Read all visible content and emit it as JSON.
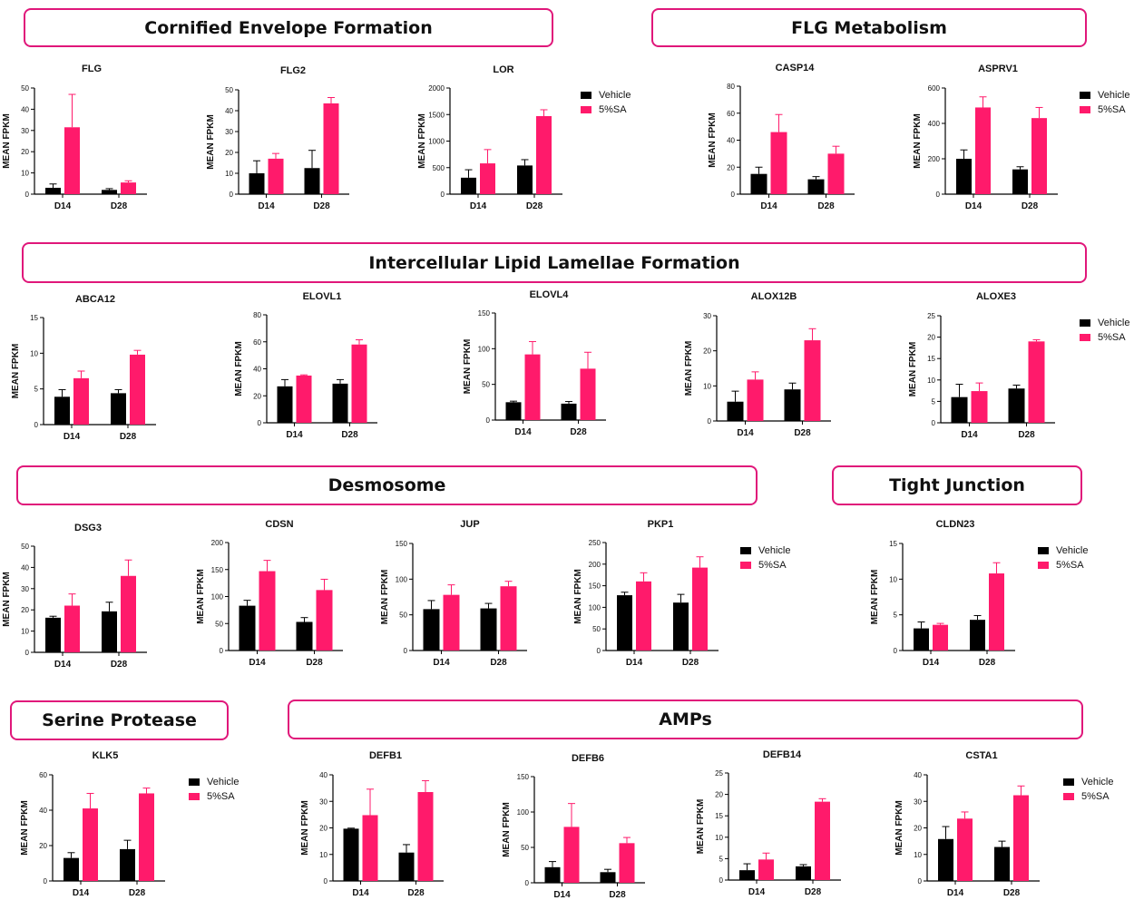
{
  "colors": {
    "vehicle": "#000000",
    "sa": "#ff1a6b",
    "section_border": "#e0177a"
  },
  "sections": {
    "cornified": "Cornified Envelope Formation",
    "flg_metabolism": "FLG Metabolism",
    "lipid": "Intercellular Lipid Lamellae Formation",
    "desmosome": "Desmosome",
    "tight_junction": "Tight Junction",
    "serine_protease": "Serine Protease",
    "amps": "AMPs"
  },
  "legend": {
    "vehicle": "Vehicle",
    "sa": "5%SA"
  },
  "chart_data": [
    {
      "type": "bar",
      "title": "FLG",
      "ylabel": "MEAN FPKM",
      "categories": [
        "D14",
        "D28"
      ],
      "ylim": [
        0,
        50
      ],
      "yticks": [
        0,
        10,
        20,
        30,
        40,
        50
      ],
      "series": [
        {
          "name": "Vehicle",
          "values": [
            3,
            2
          ],
          "errors": [
            1.8,
            0.6
          ]
        },
        {
          "name": "5%SA",
          "values": [
            31.5,
            5.5
          ],
          "errors": [
            15.5,
            0.8
          ]
        }
      ]
    },
    {
      "type": "bar",
      "title": "FLG2",
      "ylabel": "MEAN FPKM",
      "categories": [
        "D14",
        "D28"
      ],
      "ylim": [
        0,
        50
      ],
      "yticks": [
        0,
        10,
        20,
        30,
        40,
        50
      ],
      "series": [
        {
          "name": "Vehicle",
          "values": [
            10,
            12.5
          ],
          "errors": [
            6,
            8.5
          ]
        },
        {
          "name": "5%SA",
          "values": [
            17,
            43.5
          ],
          "errors": [
            2.5,
            2.8
          ]
        }
      ]
    },
    {
      "type": "bar",
      "title": "LOR",
      "ylabel": "MEAN FPKM",
      "categories": [
        "D14",
        "D28"
      ],
      "ylim": [
        0,
        2000
      ],
      "yticks": [
        0,
        500,
        1000,
        1500,
        2000
      ],
      "series": [
        {
          "name": "Vehicle",
          "values": [
            310,
            540
          ],
          "errors": [
            150,
            110
          ]
        },
        {
          "name": "5%SA",
          "values": [
            580,
            1470
          ],
          "errors": [
            260,
            120
          ]
        }
      ]
    },
    {
      "type": "bar",
      "title": "CASP14",
      "ylabel": "MEAN FPKM",
      "categories": [
        "D14",
        "D28"
      ],
      "ylim": [
        0,
        80
      ],
      "yticks": [
        0,
        20,
        40,
        60,
        80
      ],
      "series": [
        {
          "name": "Vehicle",
          "values": [
            15,
            11
          ],
          "errors": [
            5,
            2
          ]
        },
        {
          "name": "5%SA",
          "values": [
            46,
            30
          ],
          "errors": [
            13,
            5.5
          ]
        }
      ]
    },
    {
      "type": "bar",
      "title": "ASPRV1",
      "ylabel": "MEAN FPKM",
      "categories": [
        "D14",
        "D28"
      ],
      "ylim": [
        0,
        600
      ],
      "yticks": [
        0,
        200,
        400,
        600
      ],
      "series": [
        {
          "name": "Vehicle",
          "values": [
            200,
            140
          ],
          "errors": [
            50,
            15
          ]
        },
        {
          "name": "5%SA",
          "values": [
            490,
            430
          ],
          "errors": [
            60,
            60
          ]
        }
      ]
    },
    {
      "type": "bar",
      "title": "ABCA12",
      "ylabel": "MEAN FPKM",
      "categories": [
        "D14",
        "D28"
      ],
      "ylim": [
        0,
        15
      ],
      "yticks": [
        0,
        5,
        10,
        15
      ],
      "series": [
        {
          "name": "Vehicle",
          "values": [
            3.9,
            4.4
          ],
          "errors": [
            1,
            0.5
          ]
        },
        {
          "name": "5%SA",
          "values": [
            6.5,
            9.8
          ],
          "errors": [
            1,
            0.6
          ]
        }
      ]
    },
    {
      "type": "bar",
      "title": "ELOVL1",
      "ylabel": "MEAN FPKM",
      "categories": [
        "D14",
        "D28"
      ],
      "ylim": [
        0,
        80
      ],
      "yticks": [
        0,
        20,
        40,
        60,
        80
      ],
      "series": [
        {
          "name": "Vehicle",
          "values": [
            27,
            29
          ],
          "errors": [
            5,
            3
          ]
        },
        {
          "name": "5%SA",
          "values": [
            35,
            58
          ],
          "errors": [
            0.5,
            3.5
          ]
        }
      ]
    },
    {
      "type": "bar",
      "title": "ELOVL4",
      "ylabel": "MEAN FPKM",
      "categories": [
        "D14",
        "D28"
      ],
      "ylim": [
        0,
        150
      ],
      "yticks": [
        0,
        50,
        100,
        150
      ],
      "series": [
        {
          "name": "Vehicle",
          "values": [
            25,
            23
          ],
          "errors": [
            1.5,
            3
          ]
        },
        {
          "name": "5%SA",
          "values": [
            92,
            72
          ],
          "errors": [
            18,
            23
          ]
        }
      ]
    },
    {
      "type": "bar",
      "title": "ALOX12B",
      "ylabel": "MEAN FPKM",
      "categories": [
        "D14",
        "D28"
      ],
      "ylim": [
        0,
        30
      ],
      "yticks": [
        0,
        10,
        20,
        30
      ],
      "series": [
        {
          "name": "Vehicle",
          "values": [
            5.5,
            9
          ],
          "errors": [
            3,
            1.8
          ]
        },
        {
          "name": "5%SA",
          "values": [
            11.8,
            23
          ],
          "errors": [
            2.2,
            3.3
          ]
        }
      ]
    },
    {
      "type": "bar",
      "title": "ALOXE3",
      "ylabel": "MEAN FPKM",
      "categories": [
        "D14",
        "D28"
      ],
      "ylim": [
        0,
        25
      ],
      "yticks": [
        0,
        5,
        10,
        15,
        20,
        25
      ],
      "series": [
        {
          "name": "Vehicle",
          "values": [
            6,
            8
          ],
          "errors": [
            3,
            0.8
          ]
        },
        {
          "name": "5%SA",
          "values": [
            7.4,
            19
          ],
          "errors": [
            1.9,
            0.4
          ]
        }
      ]
    },
    {
      "type": "bar",
      "title": "DSG3",
      "ylabel": "MEAN FPKM",
      "categories": [
        "D14",
        "D28"
      ],
      "ylim": [
        0,
        50
      ],
      "yticks": [
        0,
        10,
        20,
        30,
        40,
        50
      ],
      "series": [
        {
          "name": "Vehicle",
          "values": [
            16.3,
            19.3
          ],
          "errors": [
            0.7,
            4.3
          ]
        },
        {
          "name": "5%SA",
          "values": [
            22,
            36
          ],
          "errors": [
            5.5,
            7.5
          ]
        }
      ]
    },
    {
      "type": "bar",
      "title": "CDSN",
      "ylabel": "MEAN FPKM",
      "categories": [
        "D14",
        "D28"
      ],
      "ylim": [
        0,
        200
      ],
      "yticks": [
        0,
        50,
        100,
        150,
        200
      ],
      "series": [
        {
          "name": "Vehicle",
          "values": [
            83,
            53
          ],
          "errors": [
            10,
            8
          ]
        },
        {
          "name": "5%SA",
          "values": [
            147,
            112
          ],
          "errors": [
            20,
            20
          ]
        }
      ]
    },
    {
      "type": "bar",
      "title": "JUP",
      "ylabel": "MEAN FPKM",
      "categories": [
        "D14",
        "D28"
      ],
      "ylim": [
        0,
        150
      ],
      "yticks": [
        0,
        50,
        100,
        150
      ],
      "series": [
        {
          "name": "Vehicle",
          "values": [
            58,
            59
          ],
          "errors": [
            12,
            7
          ]
        },
        {
          "name": "5%SA",
          "values": [
            78,
            90
          ],
          "errors": [
            14,
            7
          ]
        }
      ]
    },
    {
      "type": "bar",
      "title": "PKP1",
      "ylabel": "MEAN FPKM",
      "categories": [
        "D14",
        "D28"
      ],
      "ylim": [
        0,
        250
      ],
      "yticks": [
        0,
        50,
        100,
        150,
        200,
        250
      ],
      "series": [
        {
          "name": "Vehicle",
          "values": [
            128,
            111
          ],
          "errors": [
            7,
            19
          ]
        },
        {
          "name": "5%SA",
          "values": [
            160,
            192
          ],
          "errors": [
            20,
            25
          ]
        }
      ]
    },
    {
      "type": "bar",
      "title": "CLDN23",
      "ylabel": "MEAN FPKM",
      "categories": [
        "D14",
        "D28"
      ],
      "ylim": [
        0,
        15
      ],
      "yticks": [
        0,
        5,
        10,
        15
      ],
      "series": [
        {
          "name": "Vehicle",
          "values": [
            3.1,
            4.3
          ],
          "errors": [
            0.9,
            0.6
          ]
        },
        {
          "name": "5%SA",
          "values": [
            3.6,
            10.8
          ],
          "errors": [
            0.2,
            1.5
          ]
        }
      ]
    },
    {
      "type": "bar",
      "title": "KLK5",
      "ylabel": "MEAN FPKM",
      "categories": [
        "D14",
        "D28"
      ],
      "ylim": [
        0,
        60
      ],
      "yticks": [
        0,
        20,
        40,
        60
      ],
      "series": [
        {
          "name": "Vehicle",
          "values": [
            13,
            18
          ],
          "errors": [
            3,
            5
          ]
        },
        {
          "name": "5%SA",
          "values": [
            41,
            49.5
          ],
          "errors": [
            8.5,
            3
          ]
        }
      ]
    },
    {
      "type": "bar",
      "title": "DEFB1",
      "ylabel": "MEAN FPKM",
      "categories": [
        "D14",
        "D28"
      ],
      "ylim": [
        0,
        40
      ],
      "yticks": [
        0,
        10,
        20,
        30,
        40
      ],
      "series": [
        {
          "name": "Vehicle",
          "values": [
            19.7,
            10.7
          ],
          "errors": [
            0.2,
            3
          ]
        },
        {
          "name": "5%SA",
          "values": [
            24.8,
            33.5
          ],
          "errors": [
            9.8,
            4.3
          ]
        }
      ]
    },
    {
      "type": "bar",
      "title": "DEFB6",
      "ylabel": "MEAN FPKM",
      "categories": [
        "D14",
        "D28"
      ],
      "ylim": [
        0,
        150
      ],
      "yticks": [
        0,
        50,
        100,
        150
      ],
      "series": [
        {
          "name": "Vehicle",
          "values": [
            22,
            15
          ],
          "errors": [
            8,
            4
          ]
        },
        {
          "name": "5%SA",
          "values": [
            79,
            56
          ],
          "errors": [
            33,
            8
          ]
        }
      ]
    },
    {
      "type": "bar",
      "title": "DEFB14",
      "ylabel": "MEAN FPKM",
      "categories": [
        "D14",
        "D28"
      ],
      "ylim": [
        0,
        25
      ],
      "yticks": [
        0,
        5,
        10,
        15,
        20,
        25
      ],
      "series": [
        {
          "name": "Vehicle",
          "values": [
            2.3,
            3.2
          ],
          "errors": [
            1.5,
            0.4
          ]
        },
        {
          "name": "5%SA",
          "values": [
            4.8,
            18.3
          ],
          "errors": [
            1.5,
            0.7
          ]
        }
      ]
    },
    {
      "type": "bar",
      "title": "CSTA1",
      "ylabel": "MEAN FPKM",
      "categories": [
        "D14",
        "D28"
      ],
      "ylim": [
        0,
        40
      ],
      "yticks": [
        0,
        10,
        20,
        30,
        40
      ],
      "series": [
        {
          "name": "Vehicle",
          "values": [
            15.8,
            12.8
          ],
          "errors": [
            4.7,
            2.2
          ]
        },
        {
          "name": "5%SA",
          "values": [
            23.5,
            32.3
          ],
          "errors": [
            2.5,
            3.5
          ]
        }
      ]
    }
  ]
}
